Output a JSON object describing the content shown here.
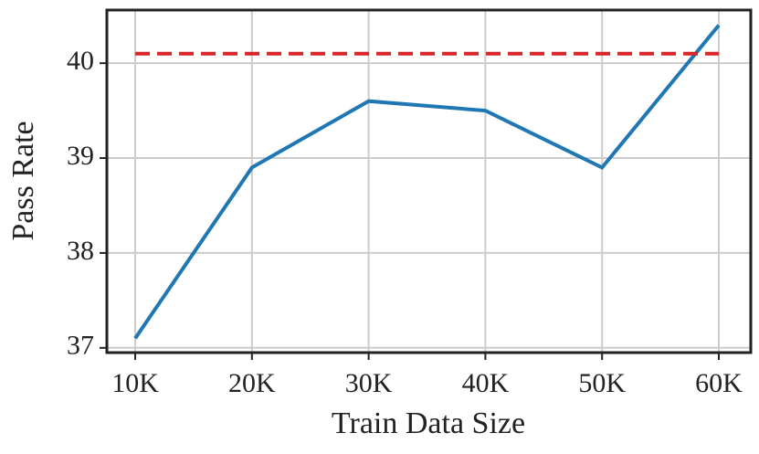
{
  "chart_data": {
    "type": "line",
    "xlabel": "Train Data Size",
    "ylabel": "Pass Rate",
    "x": [
      10000,
      20000,
      30000,
      40000,
      50000,
      60000
    ],
    "series": [
      {
        "color": "#1f77b4",
        "values": [
          37.1,
          38.9,
          39.6,
          39.5,
          38.9,
          40.4
        ]
      },
      {
        "color": "#d62728",
        "dashed": true,
        "values": [
          40.1,
          40.1,
          40.1,
          40.1,
          40.1,
          40.1
        ]
      }
    ],
    "xlim": [
      7570,
      62740
    ],
    "ylim": [
      36.95,
      40.56
    ],
    "xticks": [
      {
        "value": 10000,
        "label": "10K"
      },
      {
        "value": 20000,
        "label": "20K"
      },
      {
        "value": 30000,
        "label": "30K"
      },
      {
        "value": 40000,
        "label": "40K"
      },
      {
        "value": 50000,
        "label": "50K"
      },
      {
        "value": 60000,
        "label": "60K"
      }
    ],
    "yticks": [
      37,
      38,
      39,
      40
    ],
    "grid": true
  }
}
